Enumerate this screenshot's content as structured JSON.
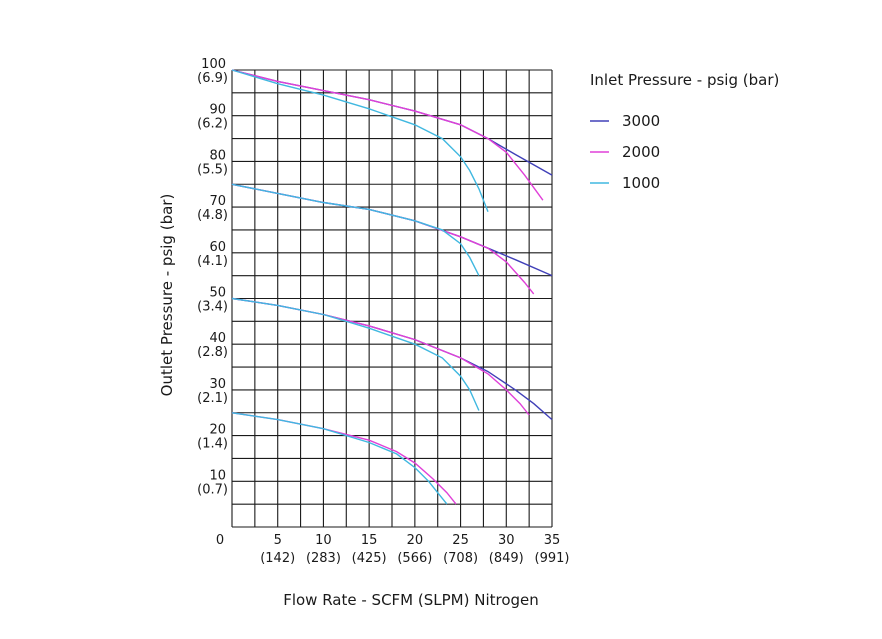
{
  "chart_data": {
    "type": "line",
    "title": "",
    "xlabel": "Flow Rate - SCFM (SLPM) Nitrogen",
    "ylabel": "Outlet Pressure - psig (bar)",
    "xlim": [
      0,
      35
    ],
    "ylim": [
      0,
      100
    ],
    "grid": true,
    "x_ticks": [
      {
        "value": 5,
        "label": "5",
        "sublabel": "(142)"
      },
      {
        "value": 10,
        "label": "10",
        "sublabel": "(283)"
      },
      {
        "value": 15,
        "label": "15",
        "sublabel": "(425)"
      },
      {
        "value": 20,
        "label": "20",
        "sublabel": "(566)"
      },
      {
        "value": 25,
        "label": "25",
        "sublabel": "(708)"
      },
      {
        "value": 30,
        "label": "30",
        "sublabel": "(849)"
      },
      {
        "value": 35,
        "label": "35",
        "sublabel": "(991)"
      }
    ],
    "y_ticks": [
      {
        "value": 100,
        "label": "100",
        "sublabel": "(6.9)"
      },
      {
        "value": 90,
        "label": "90",
        "sublabel": "(6.2)"
      },
      {
        "value": 80,
        "label": "80",
        "sublabel": "(5.5)"
      },
      {
        "value": 70,
        "label": "70",
        "sublabel": "(4.8)"
      },
      {
        "value": 60,
        "label": "60",
        "sublabel": "(4.1)"
      },
      {
        "value": 50,
        "label": "50",
        "sublabel": "(3.4)"
      },
      {
        "value": 40,
        "label": "40",
        "sublabel": "(2.8)"
      },
      {
        "value": 30,
        "label": "30",
        "sublabel": "(2.1)"
      },
      {
        "value": 20,
        "label": "20",
        "sublabel": "(1.4)"
      },
      {
        "value": 10,
        "label": "10",
        "sublabel": "(0.7)"
      }
    ],
    "origin_label": "0",
    "legend": {
      "title": "Inlet Pressure - psig (bar)",
      "position": "right",
      "entries": [
        {
          "name": "3000",
          "color": "#4040b8"
        },
        {
          "name": "2000",
          "color": "#e040d8"
        },
        {
          "name": "1000",
          "color": "#40b8e0"
        }
      ]
    },
    "series": [
      {
        "name": "3000",
        "set_pressure": 100,
        "color": "#4040b8",
        "points": [
          [
            0,
            100
          ],
          [
            5,
            97.5
          ],
          [
            10,
            95.5
          ],
          [
            15,
            93.5
          ],
          [
            20,
            91
          ],
          [
            25,
            88
          ],
          [
            28,
            85
          ],
          [
            31,
            81.5
          ],
          [
            35,
            77
          ]
        ]
      },
      {
        "name": "2000",
        "set_pressure": 100,
        "color": "#e040d8",
        "points": [
          [
            0,
            100
          ],
          [
            5,
            97.5
          ],
          [
            10,
            95.5
          ],
          [
            15,
            93.5
          ],
          [
            20,
            91
          ],
          [
            25,
            88
          ],
          [
            28,
            85
          ],
          [
            30,
            82
          ],
          [
            32,
            77
          ],
          [
            34,
            71.5
          ]
        ]
      },
      {
        "name": "1000",
        "set_pressure": 100,
        "color": "#40b8e0",
        "points": [
          [
            0,
            100
          ],
          [
            5,
            97
          ],
          [
            10,
            94.5
          ],
          [
            15,
            91.5
          ],
          [
            20,
            88
          ],
          [
            23,
            85
          ],
          [
            25,
            81
          ],
          [
            26,
            78
          ],
          [
            27,
            74
          ],
          [
            28,
            69
          ]
        ]
      },
      {
        "name": "3000",
        "set_pressure": 75,
        "color": "#4040b8",
        "points": [
          [
            0,
            75
          ],
          [
            5,
            73
          ],
          [
            10,
            71
          ],
          [
            15,
            69.5
          ],
          [
            20,
            67
          ],
          [
            25,
            63.5
          ],
          [
            28,
            61
          ],
          [
            31,
            58.5
          ],
          [
            35,
            55
          ]
        ]
      },
      {
        "name": "2000",
        "set_pressure": 75,
        "color": "#e040d8",
        "points": [
          [
            0,
            75
          ],
          [
            5,
            73
          ],
          [
            10,
            71
          ],
          [
            15,
            69.5
          ],
          [
            20,
            67
          ],
          [
            25,
            63.5
          ],
          [
            28,
            61
          ],
          [
            30,
            58
          ],
          [
            32,
            53.5
          ],
          [
            33,
            51
          ]
        ]
      },
      {
        "name": "1000",
        "set_pressure": 75,
        "color": "#40b8e0",
        "points": [
          [
            0,
            75
          ],
          [
            5,
            73
          ],
          [
            10,
            71
          ],
          [
            15,
            69.5
          ],
          [
            20,
            67
          ],
          [
            23,
            65
          ],
          [
            25,
            62
          ],
          [
            26,
            59
          ],
          [
            27,
            55
          ]
        ]
      },
      {
        "name": "3000",
        "set_pressure": 50,
        "color": "#4040b8",
        "points": [
          [
            0,
            50
          ],
          [
            5,
            48.5
          ],
          [
            10,
            46.5
          ],
          [
            15,
            44
          ],
          [
            20,
            41
          ],
          [
            25,
            37
          ],
          [
            28,
            34
          ],
          [
            31,
            30
          ],
          [
            33,
            27
          ],
          [
            35,
            23.5
          ]
        ]
      },
      {
        "name": "2000",
        "set_pressure": 50,
        "color": "#e040d8",
        "points": [
          [
            0,
            50
          ],
          [
            5,
            48.5
          ],
          [
            10,
            46.5
          ],
          [
            15,
            44
          ],
          [
            20,
            41
          ],
          [
            25,
            37
          ],
          [
            28,
            33.5
          ],
          [
            30,
            30
          ],
          [
            31.5,
            27
          ],
          [
            32.5,
            24.5
          ]
        ]
      },
      {
        "name": "1000",
        "set_pressure": 50,
        "color": "#40b8e0",
        "points": [
          [
            0,
            50
          ],
          [
            5,
            48.5
          ],
          [
            10,
            46.5
          ],
          [
            15,
            43.5
          ],
          [
            20,
            40
          ],
          [
            23,
            37
          ],
          [
            25,
            33
          ],
          [
            26,
            30
          ],
          [
            27,
            25.5
          ]
        ]
      },
      {
        "name": "2000",
        "set_pressure": 25,
        "color": "#e040d8",
        "points": [
          [
            0,
            25
          ],
          [
            5,
            23.5
          ],
          [
            10,
            21.5
          ],
          [
            15,
            19
          ],
          [
            18,
            16.5
          ],
          [
            20,
            14
          ],
          [
            22,
            10.5
          ],
          [
            23.5,
            7.5
          ],
          [
            24.5,
            5
          ]
        ]
      },
      {
        "name": "1000",
        "set_pressure": 25,
        "color": "#40b8e0",
        "points": [
          [
            0,
            25
          ],
          [
            5,
            23.5
          ],
          [
            10,
            21.5
          ],
          [
            15,
            18.5
          ],
          [
            18,
            16
          ],
          [
            20,
            13
          ],
          [
            21.5,
            10
          ],
          [
            22.5,
            7.5
          ],
          [
            23.5,
            5
          ]
        ]
      }
    ]
  }
}
